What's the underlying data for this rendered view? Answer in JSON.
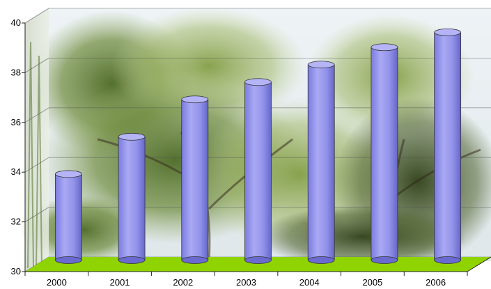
{
  "chart_data": {
    "type": "bar",
    "style": "3d-cylinder",
    "categories": [
      "2000",
      "2001",
      "2002",
      "2003",
      "2004",
      "2005",
      "2006"
    ],
    "series": [
      {
        "values": [
          33.8,
          35.3,
          36.8,
          37.5,
          38.2,
          38.9,
          39.5
        ]
      }
    ],
    "ylim": [
      30,
      40
    ],
    "yticks": [
      30,
      32,
      34,
      36,
      38,
      40
    ],
    "xlabel": "",
    "ylabel": "",
    "title": "",
    "grid": true,
    "legend": "none",
    "colors": {
      "bar": "#9a9aee",
      "bar_dark": "#6a6ad0",
      "bar_top": "#b4b4f6",
      "floor": "#8fd400",
      "background": "photo of trees under a pale sky"
    }
  }
}
